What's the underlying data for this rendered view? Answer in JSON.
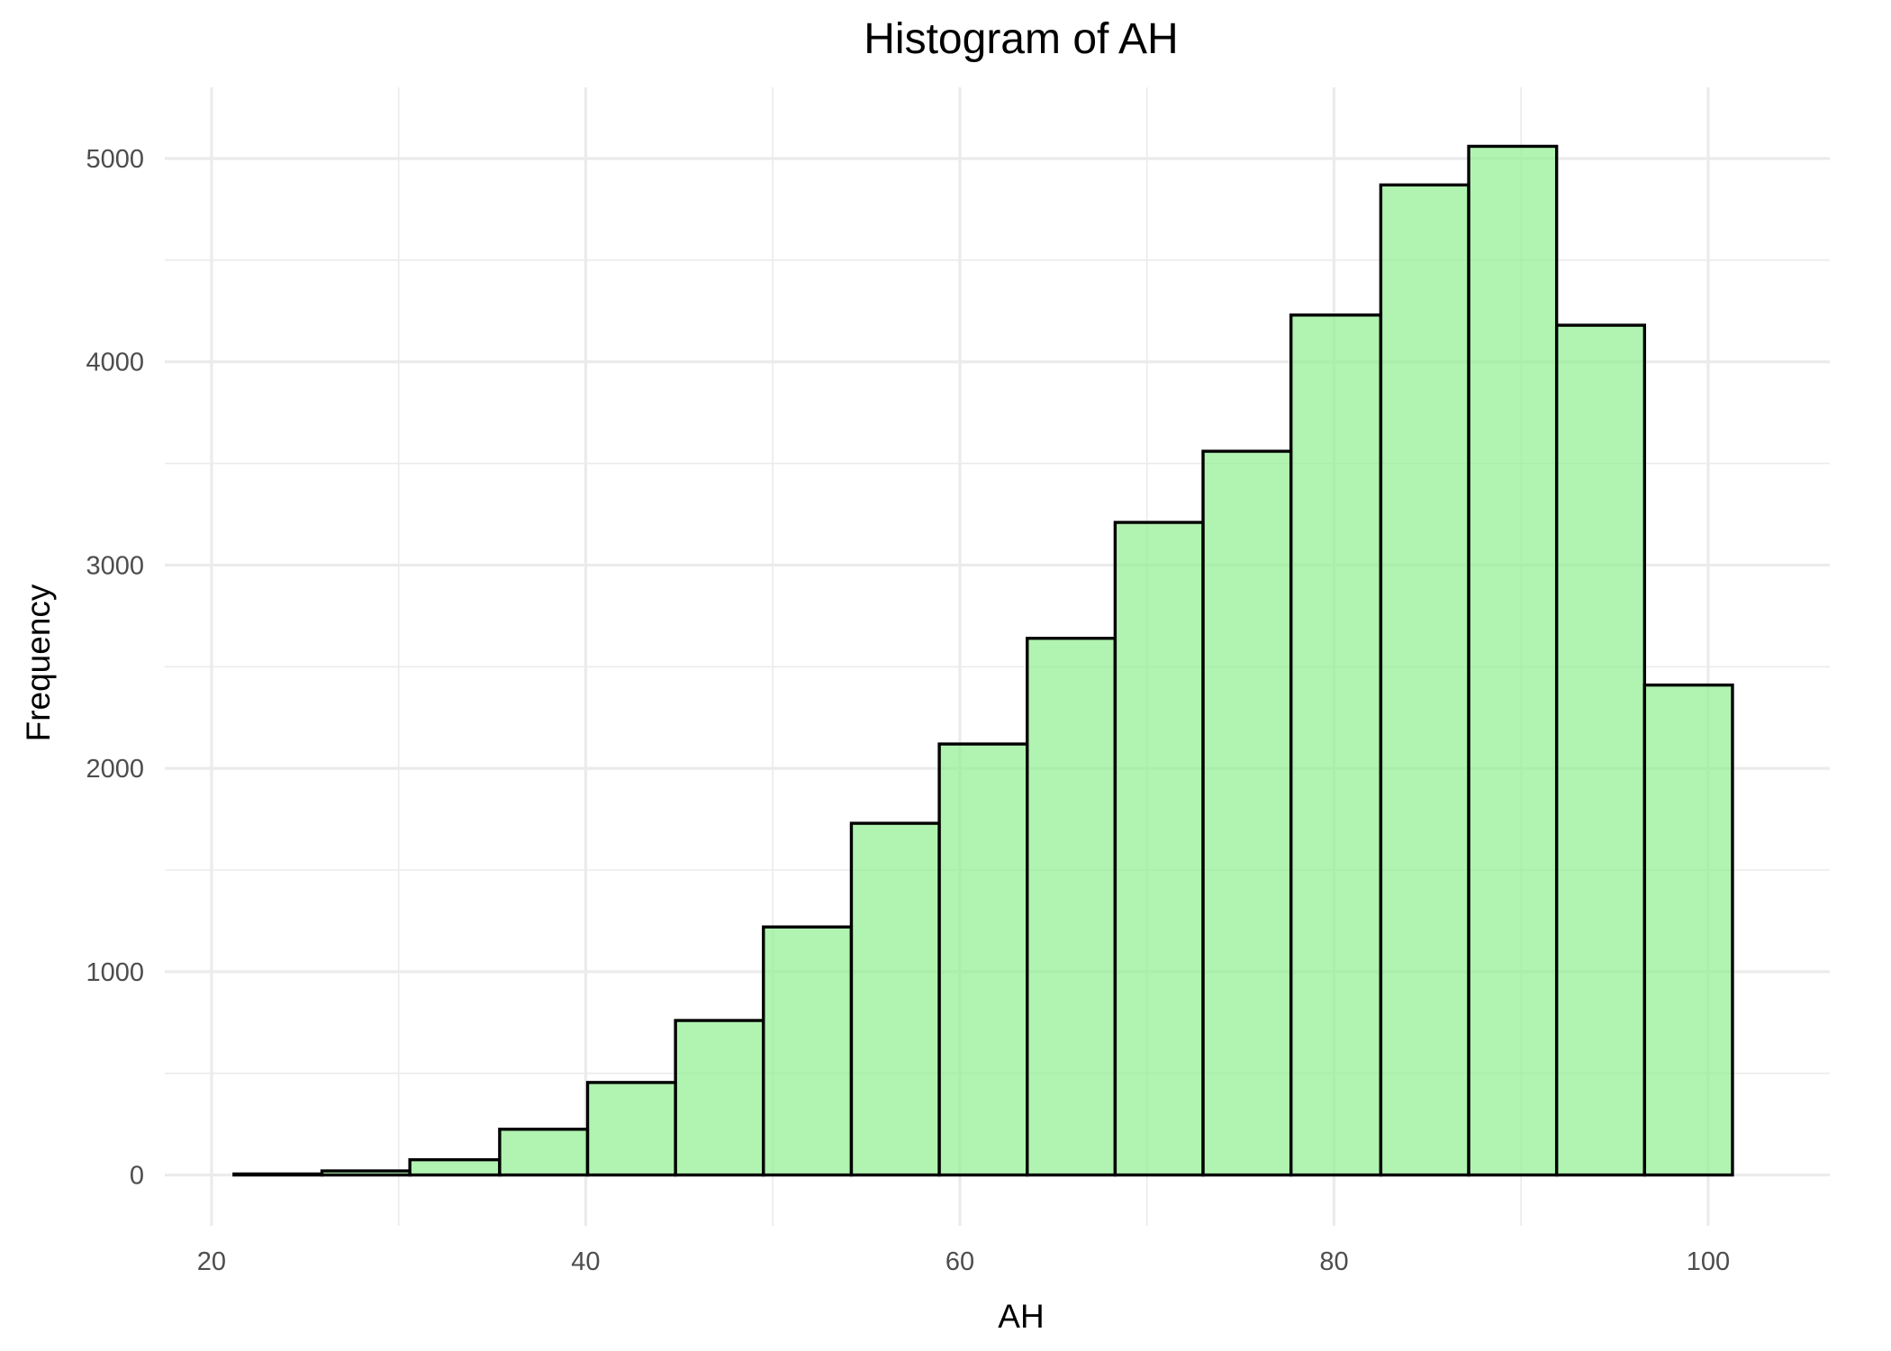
{
  "chart_data": {
    "type": "bar",
    "title": "Histogram of AH",
    "xlabel": "AH",
    "ylabel": "Frequency",
    "xlim": [
      17.5,
      106.5
    ],
    "ylim": [
      -250,
      5350
    ],
    "x_ticks": [
      20,
      40,
      60,
      80,
      100
    ],
    "y_ticks": [
      0,
      1000,
      2000,
      3000,
      4000,
      5000
    ],
    "grid": true,
    "bar_color": "#90EE90",
    "bar_opacity": 0.7,
    "bar_outline": "#000000",
    "bins": [
      {
        "x0": 21.2,
        "x1": 25.9,
        "count": 5
      },
      {
        "x0": 25.9,
        "x1": 30.6,
        "count": 20
      },
      {
        "x0": 30.6,
        "x1": 35.4,
        "count": 75
      },
      {
        "x0": 35.4,
        "x1": 40.1,
        "count": 225
      },
      {
        "x0": 40.1,
        "x1": 44.8,
        "count": 455
      },
      {
        "x0": 44.8,
        "x1": 49.5,
        "count": 760
      },
      {
        "x0": 49.5,
        "x1": 54.2,
        "count": 1220
      },
      {
        "x0": 54.2,
        "x1": 58.9,
        "count": 1730
      },
      {
        "x0": 58.9,
        "x1": 63.6,
        "count": 2120
      },
      {
        "x0": 63.6,
        "x1": 68.3,
        "count": 2640
      },
      {
        "x0": 68.3,
        "x1": 73.0,
        "count": 3210
      },
      {
        "x0": 73.0,
        "x1": 77.7,
        "count": 3560
      },
      {
        "x0": 77.7,
        "x1": 82.5,
        "count": 4230
      },
      {
        "x0": 82.5,
        "x1": 87.2,
        "count": 4870
      },
      {
        "x0": 87.2,
        "x1": 91.9,
        "count": 5060
      },
      {
        "x0": 91.9,
        "x1": 96.6,
        "count": 4180
      },
      {
        "x0": 96.6,
        "x1": 101.3,
        "count": 2410
      }
    ]
  }
}
